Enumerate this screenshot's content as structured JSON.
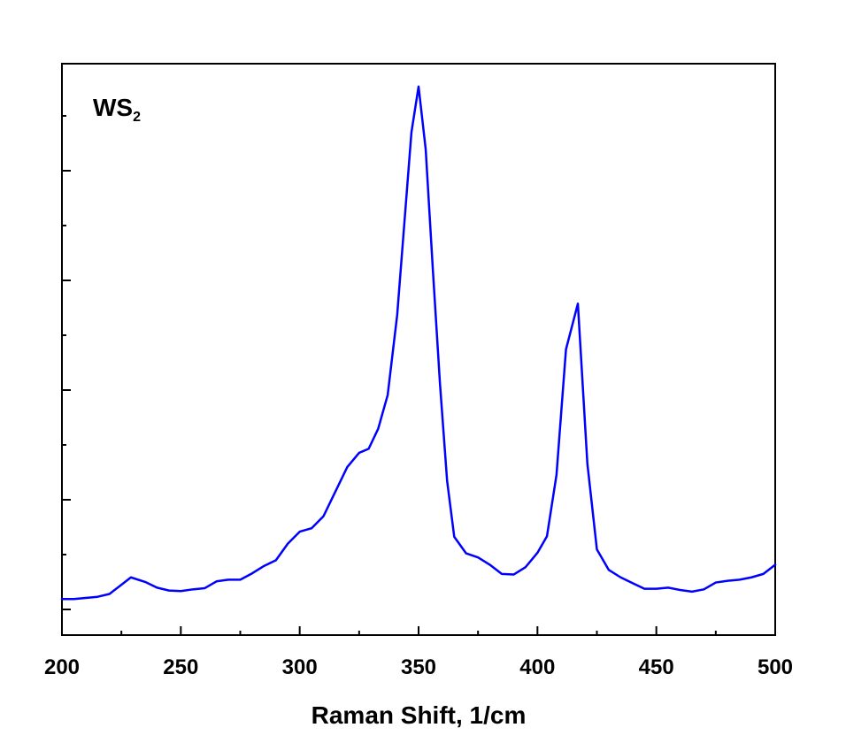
{
  "chart_data": {
    "type": "line",
    "title": "",
    "xlabel": "Raman Shift, 1/cm",
    "ylabel": "",
    "xlim": [
      200,
      500
    ],
    "ylim": [
      0,
      1
    ],
    "xticks": [
      200,
      250,
      300,
      350,
      400,
      450,
      500
    ],
    "yticks_labeled": false,
    "grid": false,
    "annotation": {
      "main": "WS",
      "sub": "2",
      "position": "top-left"
    },
    "series": [
      {
        "name": "WS2",
        "color": "#0000ff",
        "x": [
          200,
          205,
          210,
          215,
          220,
          225,
          229,
          235,
          240,
          245,
          250,
          255,
          260,
          265,
          270,
          275,
          280,
          285,
          290,
          295,
          300,
          305,
          310,
          315,
          320,
          325,
          329,
          333,
          337,
          341,
          344,
          347,
          350,
          353,
          356,
          359,
          362,
          365,
          370,
          375,
          380,
          385,
          390,
          395,
          400,
          404,
          408,
          412,
          417,
          421,
          425,
          430,
          435,
          440,
          445,
          450,
          455,
          460,
          465,
          470,
          475,
          480,
          485,
          490,
          495,
          500
        ],
        "y": [
          0.063,
          0.063,
          0.065,
          0.067,
          0.072,
          0.088,
          0.101,
          0.093,
          0.083,
          0.078,
          0.077,
          0.08,
          0.082,
          0.094,
          0.097,
          0.097,
          0.108,
          0.121,
          0.131,
          0.16,
          0.181,
          0.187,
          0.208,
          0.251,
          0.294,
          0.319,
          0.326,
          0.361,
          0.42,
          0.56,
          0.72,
          0.88,
          0.96,
          0.85,
          0.64,
          0.44,
          0.27,
          0.172,
          0.143,
          0.136,
          0.123,
          0.107,
          0.106,
          0.119,
          0.144,
          0.173,
          0.28,
          0.5,
          0.58,
          0.3,
          0.15,
          0.114,
          0.101,
          0.091,
          0.081,
          0.081,
          0.083,
          0.079,
          0.076,
          0.08,
          0.092,
          0.095,
          0.097,
          0.101,
          0.107,
          0.123
        ]
      }
    ]
  }
}
